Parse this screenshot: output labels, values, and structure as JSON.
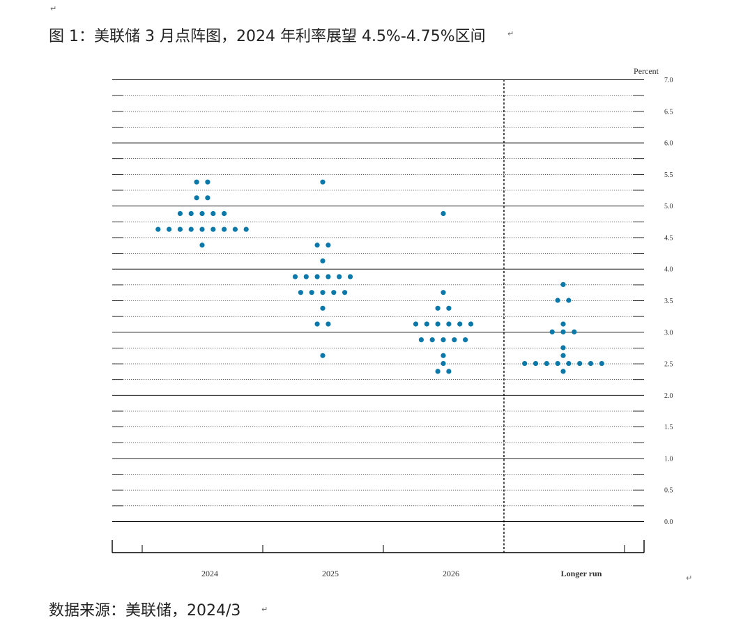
{
  "document": {
    "title": "图 1：美联储 3 月点阵图，2024 年利率展望 4.5%-4.75%区间",
    "source": "数据来源：美联储，2024/3",
    "paragraph_mark": "↵"
  },
  "colors": {
    "dot": "#0a78a8",
    "line": "#000000",
    "text": "#222222"
  },
  "chart_data": {
    "type": "scatter",
    "subtype": "dot-plot",
    "ylabel": "Percent",
    "ylim": [
      0,
      7
    ],
    "y_ticks": [
      "7.0",
      "6.5",
      "6.0",
      "5.5",
      "5.0",
      "4.5",
      "4.0",
      "3.5",
      "3.0",
      "2.5",
      "2.0",
      "1.5",
      "1.0",
      "0.5",
      "0.0"
    ],
    "categories": [
      "2024",
      "2025",
      "2026",
      "Longer run"
    ],
    "grid": "dotted every 0.25, solid every 1.0",
    "separator": "dashed vertical line before Longer run",
    "series": [
      {
        "category": "2024",
        "points": [
          {
            "y": 5.375,
            "count": 2
          },
          {
            "y": 5.125,
            "count": 2
          },
          {
            "y": 4.875,
            "count": 5
          },
          {
            "y": 4.625,
            "count": 9
          },
          {
            "y": 4.375,
            "count": 1
          }
        ]
      },
      {
        "category": "2025",
        "points": [
          {
            "y": 5.375,
            "count": 1
          },
          {
            "y": 4.375,
            "count": 2
          },
          {
            "y": 4.125,
            "count": 1
          },
          {
            "y": 3.875,
            "count": 6
          },
          {
            "y": 3.625,
            "count": 5
          },
          {
            "y": 3.375,
            "count": 1
          },
          {
            "y": 3.125,
            "count": 2
          },
          {
            "y": 2.625,
            "count": 1
          }
        ]
      },
      {
        "category": "2026",
        "points": [
          {
            "y": 4.875,
            "count": 1
          },
          {
            "y": 3.625,
            "count": 1
          },
          {
            "y": 3.375,
            "count": 2
          },
          {
            "y": 3.125,
            "count": 6
          },
          {
            "y": 2.875,
            "count": 5
          },
          {
            "y": 2.625,
            "count": 1
          },
          {
            "y": 2.5,
            "count": 1
          },
          {
            "y": 2.375,
            "count": 2
          }
        ]
      },
      {
        "category": "Longer run",
        "points": [
          {
            "y": 3.75,
            "count": 1
          },
          {
            "y": 3.5,
            "count": 2
          },
          {
            "y": 3.125,
            "count": 1
          },
          {
            "y": 3.0,
            "count": 3
          },
          {
            "y": 2.75,
            "count": 1
          },
          {
            "y": 2.625,
            "count": 1
          },
          {
            "y": 2.5,
            "count": 8
          },
          {
            "y": 2.375,
            "count": 1
          }
        ]
      }
    ]
  }
}
